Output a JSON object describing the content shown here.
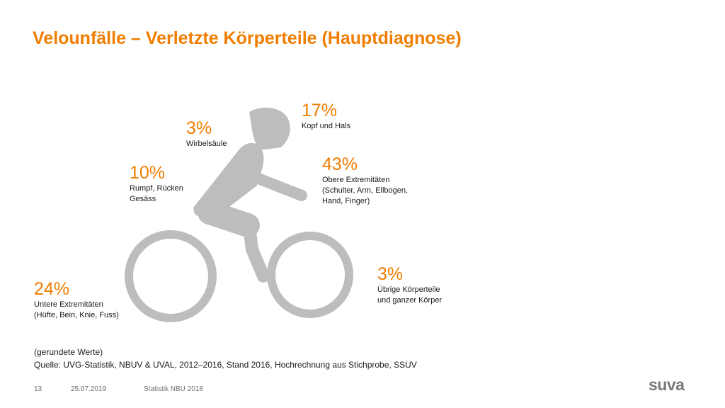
{
  "title": "Velounfälle – Verletzte Körperteile (Hauptdiagnose)",
  "colors": {
    "accent": "#f07d00",
    "figure": "#bdbdbd",
    "text": "#1a1a1a",
    "footer": "#6e6e6e"
  },
  "icons": {
    "figure": "cyclist-icon"
  },
  "labels": {
    "kopf": {
      "pct": "17%",
      "lines": [
        "Kopf und Hals"
      ]
    },
    "wirbel": {
      "pct": "3%",
      "lines": [
        "Wirbelsäule"
      ]
    },
    "rumpf": {
      "pct": "10%",
      "lines": [
        "Rumpf, Rücken",
        "Gesäss"
      ]
    },
    "obere": {
      "pct": "43%",
      "lines": [
        "Obere Extremitäten",
        "(Schulter, Arm, Ellbogen,",
        "Hand, Finger)"
      ]
    },
    "uebrige": {
      "pct": "3%",
      "lines": [
        "Übrige Körperteile",
        "und ganzer Körper"
      ]
    },
    "untere": {
      "pct": "24%",
      "lines": [
        "Untere Extremitäten",
        "(Hüfte, Bein, Knie, Fuss)"
      ]
    }
  },
  "note": {
    "line1": "(gerundete Werte)",
    "line2": "Quelle: UVG-Statistik, NBUV & UVAL, 2012–2016, Stand 2016, Hochrechnung aus Stichprobe, SSUV"
  },
  "footer": {
    "page": "13",
    "date": "25.07.2019",
    "source": "Statistik NBU 2018",
    "logo": "suva"
  }
}
